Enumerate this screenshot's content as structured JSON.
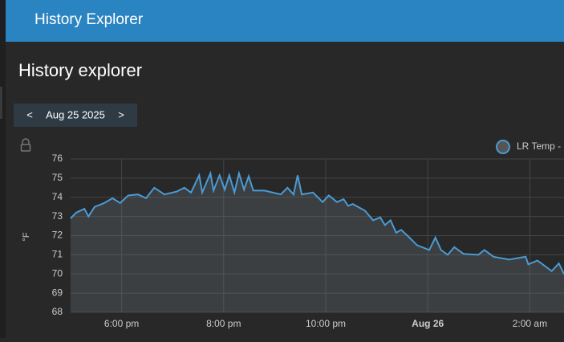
{
  "header": {
    "title": "History Explorer"
  },
  "page": {
    "title": "History explorer"
  },
  "date_nav": {
    "prev": "<",
    "date": "Aug 25 2025",
    "next": ">"
  },
  "chart_data": {
    "type": "line",
    "y_label": "°F",
    "x": [
      17.0,
      17.11,
      17.27,
      17.35,
      17.47,
      17.66,
      17.82,
      17.97,
      18.13,
      18.32,
      18.48,
      18.64,
      18.84,
      19.08,
      19.23,
      19.36,
      19.52,
      19.58,
      19.74,
      19.8,
      19.92,
      20.02,
      20.11,
      20.21,
      20.3,
      20.4,
      20.49,
      20.58,
      20.8,
      21.12,
      21.25,
      21.37,
      21.45,
      21.53,
      21.75,
      21.94,
      22.06,
      22.22,
      22.35,
      22.44,
      22.53,
      22.77,
      22.93,
      23.07,
      23.16,
      23.27,
      23.38,
      23.48,
      23.64,
      23.79,
      24.03,
      24.15,
      24.26,
      24.39,
      24.52,
      24.7,
      24.99,
      25.11,
      25.29,
      25.6,
      25.92,
      25.97,
      26.15,
      26.43,
      26.57,
      26.67
    ],
    "series": [
      {
        "name": "LR Temp -",
        "color": "#4a9bd4",
        "values": [
          72.9,
          73.2,
          73.4,
          73.0,
          73.5,
          73.7,
          73.95,
          73.7,
          74.1,
          74.15,
          73.95,
          74.5,
          74.15,
          74.3,
          74.5,
          74.25,
          75.15,
          74.25,
          75.25,
          74.35,
          75.15,
          74.4,
          75.15,
          74.25,
          75.25,
          74.4,
          75.1,
          74.35,
          74.35,
          74.15,
          74.5,
          74.15,
          75.15,
          74.15,
          74.25,
          73.75,
          74.1,
          73.75,
          73.9,
          73.55,
          73.65,
          73.3,
          72.8,
          72.95,
          72.55,
          72.8,
          72.15,
          72.3,
          71.9,
          71.5,
          71.25,
          71.9,
          71.25,
          71.0,
          71.4,
          71.05,
          71.0,
          71.25,
          70.9,
          70.75,
          70.9,
          70.5,
          70.7,
          70.15,
          70.55,
          70.0
        ]
      }
    ],
    "xlim": [
      17,
      26.67
    ],
    "xticks": [
      {
        "value": 18,
        "label": "6:00 pm"
      },
      {
        "value": 20,
        "label": "8:00 pm"
      },
      {
        "value": 22,
        "label": "10:00 pm"
      },
      {
        "value": 24,
        "label": "Aug 26"
      },
      {
        "value": 26,
        "label": "2:00 am"
      }
    ],
    "ylim": [
      68,
      76
    ],
    "yticks": [
      68,
      69,
      70,
      71,
      72,
      73,
      74,
      75,
      76
    ],
    "grid": true
  }
}
